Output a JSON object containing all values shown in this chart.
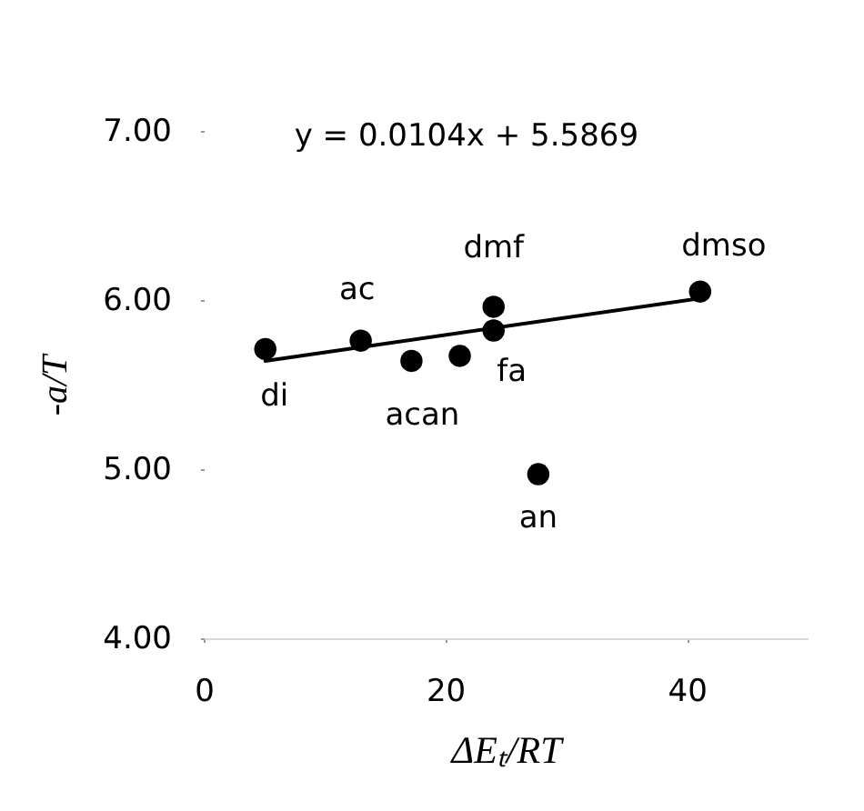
{
  "chart_data": {
    "type": "scatter",
    "xlabel": "ΔEₜ/RT",
    "ylabel": "-a/T",
    "annotations": [
      "y = 0.0104x + 5.5869",
      {
        "text": "di",
        "x": 5.1,
        "y": 5.71
      },
      {
        "text": "ac",
        "x": 13.0,
        "y": 5.76
      },
      {
        "text": "acan",
        "x": 17.2,
        "y": 5.64
      },
      {
        "text": "fa",
        "x": 24.0,
        "y": 5.82
      },
      {
        "text": "dmf",
        "x": 24.0,
        "y": 5.96
      },
      {
        "text": "dmso",
        "x": 41.1,
        "y": 6.05
      },
      {
        "text": "an",
        "x": 27.7,
        "y": 4.97
      }
    ],
    "series": [
      {
        "color": "#000000",
        "marker": "circle",
        "x": [
          5.1,
          13.0,
          17.2,
          21.2,
          24.0,
          24.0,
          41.1,
          27.7
        ],
        "values": [
          5.71,
          5.76,
          5.64,
          5.67,
          5.96,
          5.82,
          6.05,
          4.97
        ]
      },
      {
        "type": "line",
        "color": "#000000",
        "marker": "none",
        "x": [
          5.1,
          41.1
        ],
        "values": [
          5.64,
          6.01
        ]
      }
    ],
    "xlim": [
      0,
      50
    ],
    "ylim": [
      4,
      7
    ],
    "xticks": [
      0,
      20,
      40
    ],
    "yticks": [
      {
        "value": 4,
        "label": "4.00"
      },
      {
        "value": 5,
        "label": "5.00"
      },
      {
        "value": 6,
        "label": "6.00"
      },
      {
        "value": 7,
        "label": "7.00"
      }
    ]
  }
}
